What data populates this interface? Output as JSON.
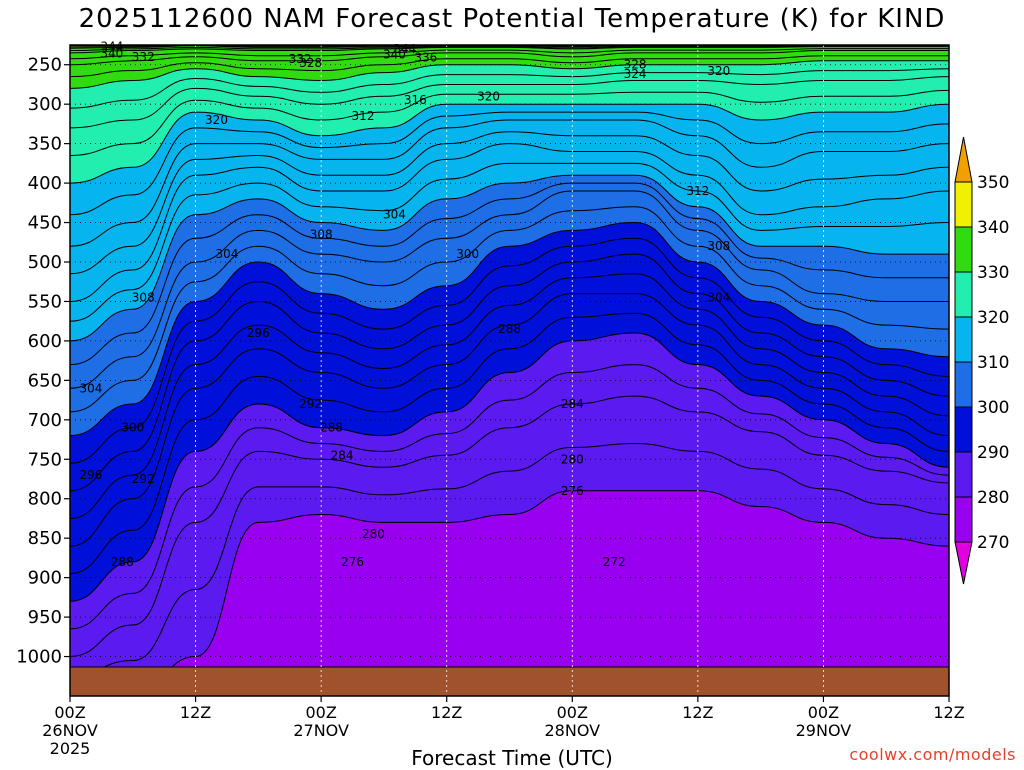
{
  "title": "2025112600 NAM Forecast Potential Temperature (K) for KIND",
  "credit": "coolwx.com/models",
  "chart_data": {
    "type": "heatmap",
    "title": "2025112600 NAM Forecast Potential Temperature (K) for KIND",
    "xlabel": "Forecast Time (UTC)",
    "ylabel": "",
    "x_range_hours": [
      0,
      84
    ],
    "y_axis": "pressure",
    "y_range_hpa": [
      225,
      1050
    ],
    "pressure_ticks": [
      250,
      300,
      350,
      400,
      450,
      500,
      550,
      600,
      650,
      700,
      750,
      800,
      850,
      900,
      950,
      1000
    ],
    "time_ticks": [
      {
        "hour": 0,
        "label": "00Z",
        "date": "26NOV",
        "year": "2025"
      },
      {
        "hour": 12,
        "label": "12Z",
        "date": "",
        "year": ""
      },
      {
        "hour": 24,
        "label": "00Z",
        "date": "27NOV",
        "year": ""
      },
      {
        "hour": 36,
        "label": "12Z",
        "date": "",
        "year": ""
      },
      {
        "hour": 48,
        "label": "00Z",
        "date": "28NOV",
        "year": ""
      },
      {
        "hour": 60,
        "label": "12Z",
        "date": "",
        "year": ""
      },
      {
        "hour": 72,
        "label": "00Z",
        "date": "29NOV",
        "year": ""
      },
      {
        "hour": 84,
        "label": "12Z",
        "date": "",
        "year": ""
      }
    ],
    "colorbar": {
      "levels": [
        270,
        280,
        290,
        300,
        310,
        320,
        330,
        340,
        350
      ],
      "colors": [
        "#e000e0",
        "#9a00f0",
        "#5a1af0",
        "#0010d8",
        "#1e6ee6",
        "#06b4ee",
        "#22eeb0",
        "#30dc10",
        "#f0f000",
        "#f0a000"
      ],
      "extend": "both"
    },
    "contour_interval": 2,
    "ground_color": "#a0522d",
    "gridlines": "dotted",
    "isentrope_pressures_hpa": {
      "hours": [
        0,
        6,
        12,
        18,
        24,
        30,
        36,
        42,
        48,
        54,
        60,
        66,
        72,
        78,
        84
      ],
      "levels": {
        "280": [
          1050,
          1050,
          1000,
          830,
          820,
          830,
          830,
          820,
          790,
          790,
          790,
          810,
          830,
          850,
          860
        ],
        "284": [
          1000,
          960,
          830,
          740,
          750,
          760,
          745,
          710,
          680,
          670,
          690,
          715,
          745,
          765,
          780
        ],
        "288": [
          930,
          880,
          740,
          680,
          710,
          720,
          690,
          640,
          600,
          590,
          630,
          670,
          700,
          730,
          760
        ],
        "292": [
          860,
          800,
          660,
          610,
          640,
          660,
          630,
          580,
          540,
          540,
          580,
          630,
          660,
          690,
          720
        ],
        "296": [
          790,
          740,
          600,
          550,
          590,
          610,
          580,
          530,
          500,
          490,
          540,
          590,
          620,
          650,
          670
        ],
        "300": [
          720,
          680,
          550,
          500,
          540,
          560,
          530,
          480,
          460,
          450,
          500,
          550,
          580,
          610,
          620
        ],
        "304": [
          660,
          620,
          500,
          460,
          490,
          500,
          470,
          440,
          410,
          410,
          460,
          510,
          540,
          550,
          550
        ],
        "308": [
          600,
          560,
          440,
          420,
          450,
          460,
          420,
          400,
          390,
          390,
          430,
          480,
          480,
          490,
          490
        ],
        "312": [
          550,
          510,
          390,
          380,
          410,
          410,
          370,
          350,
          360,
          360,
          390,
          440,
          430,
          420,
          410
        ],
        "316": [
          480,
          450,
          350,
          350,
          370,
          370,
          330,
          320,
          320,
          320,
          340,
          380,
          360,
          360,
          350
        ],
        "320": [
          400,
          380,
          310,
          320,
          340,
          330,
          300,
          300,
          300,
          300,
          300,
          320,
          310,
          310,
          300
        ],
        "324": [
          330,
          320,
          280,
          290,
          300,
          290,
          275,
          275,
          275,
          270,
          270,
          275,
          270,
          270,
          265
        ],
        "328": [
          280,
          270,
          255,
          265,
          270,
          260,
          250,
          250,
          255,
          250,
          250,
          250,
          245,
          245,
          245
        ],
        "332": [
          250,
          245,
          240,
          245,
          245,
          240,
          235,
          235,
          240,
          235,
          235,
          235,
          232,
          232,
          232
        ],
        "336": [
          235,
          232,
          230,
          232,
          232,
          230,
          228,
          228,
          230,
          228,
          228,
          228,
          227,
          227,
          227
        ],
        "340": [
          229,
          228,
          226,
          228,
          228,
          227,
          226,
          226,
          227,
          226,
          226,
          226,
          225,
          225,
          225
        ],
        "344": [
          226,
          226,
          225,
          226,
          226,
          225,
          225,
          225,
          225,
          225,
          225,
          225,
          225,
          225,
          225
        ]
      }
    },
    "contour_labels": [
      {
        "text": "344",
        "hour": 4,
        "p": 227
      },
      {
        "text": "340",
        "hour": 4,
        "p": 236
      },
      {
        "text": "332",
        "hour": 7,
        "p": 240
      },
      {
        "text": "320",
        "hour": 14,
        "p": 320
      },
      {
        "text": "344",
        "hour": 32,
        "p": 230
      },
      {
        "text": "340",
        "hour": 31,
        "p": 237
      },
      {
        "text": "336",
        "hour": 34,
        "p": 241
      },
      {
        "text": "332",
        "hour": 22,
        "p": 243
      },
      {
        "text": "328",
        "hour": 23,
        "p": 248
      },
      {
        "text": "316",
        "hour": 33,
        "p": 295
      },
      {
        "text": "320",
        "hour": 40,
        "p": 290
      },
      {
        "text": "312",
        "hour": 28,
        "p": 315
      },
      {
        "text": "328",
        "hour": 54,
        "p": 250
      },
      {
        "text": "324",
        "hour": 54,
        "p": 262
      },
      {
        "text": "320",
        "hour": 62,
        "p": 258
      },
      {
        "text": "312",
        "hour": 60,
        "p": 410
      },
      {
        "text": "304",
        "hour": 31,
        "p": 440
      },
      {
        "text": "308",
        "hour": 24,
        "p": 465
      },
      {
        "text": "304",
        "hour": 15,
        "p": 490
      },
      {
        "text": "300",
        "hour": 38,
        "p": 490
      },
      {
        "text": "308",
        "hour": 62,
        "p": 480
      },
      {
        "text": "304",
        "hour": 62,
        "p": 545
      },
      {
        "text": "308",
        "hour": 7,
        "p": 545
      },
      {
        "text": "296",
        "hour": 18,
        "p": 590
      },
      {
        "text": "288",
        "hour": 42,
        "p": 585
      },
      {
        "text": "304",
        "hour": 2,
        "p": 660
      },
      {
        "text": "292",
        "hour": 23,
        "p": 680
      },
      {
        "text": "300",
        "hour": 6,
        "p": 710
      },
      {
        "text": "288",
        "hour": 25,
        "p": 710
      },
      {
        "text": "284",
        "hour": 48,
        "p": 680
      },
      {
        "text": "284",
        "hour": 26,
        "p": 745
      },
      {
        "text": "296",
        "hour": 2,
        "p": 770
      },
      {
        "text": "292",
        "hour": 7,
        "p": 775
      },
      {
        "text": "280",
        "hour": 48,
        "p": 750
      },
      {
        "text": "276",
        "hour": 48,
        "p": 790
      },
      {
        "text": "280",
        "hour": 29,
        "p": 845
      },
      {
        "text": "288",
        "hour": 5,
        "p": 880
      },
      {
        "text": "276",
        "hour": 27,
        "p": 880
      },
      {
        "text": "272",
        "hour": 52,
        "p": 880
      }
    ]
  }
}
